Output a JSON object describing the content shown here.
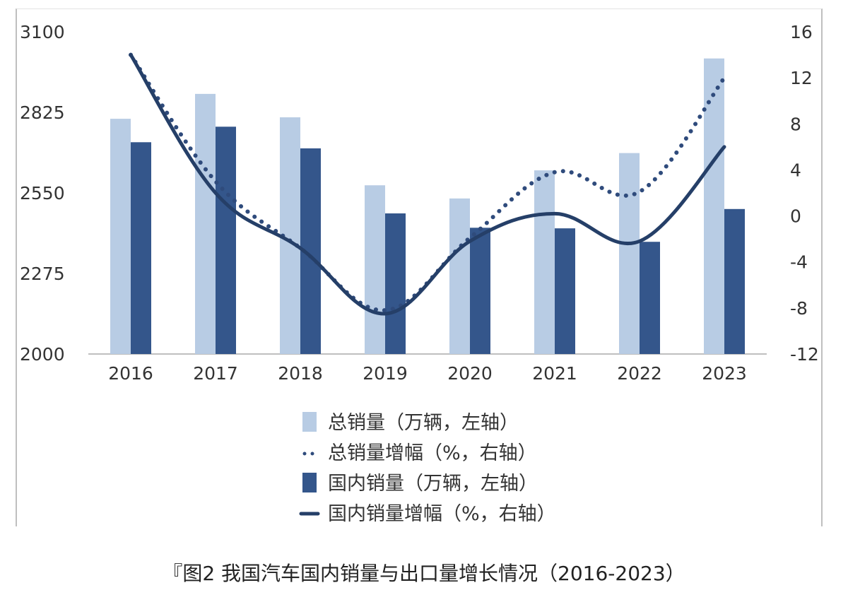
{
  "caption": "『图2 我国汽车国内销量与出口量增长情况（2016-2023）",
  "chart_data": {
    "type": "bar",
    "title": "",
    "categories": [
      "2016",
      "2017",
      "2018",
      "2019",
      "2020",
      "2021",
      "2022",
      "2023"
    ],
    "y_left": {
      "ylim": [
        2000,
        3100
      ],
      "ticks": [
        2000,
        2275,
        2550,
        2825,
        3100
      ]
    },
    "y_right": {
      "ylim": [
        -12,
        16
      ],
      "ticks": [
        -12,
        -8,
        -4,
        0,
        4,
        8,
        12,
        16
      ]
    },
    "series": [
      {
        "name": "总销量（万辆，左轴）",
        "type": "bar",
        "axis": "left",
        "color": "#b8cce4",
        "values": [
          2803,
          2888,
          2808,
          2576,
          2531,
          2627,
          2686,
          3009
        ]
      },
      {
        "name": "总销量增幅（%，右轴）",
        "type": "line",
        "style": "dotted",
        "axis": "right",
        "color": "#2f4b7c",
        "values": [
          14.0,
          3.0,
          -2.8,
          -8.2,
          -1.9,
          3.8,
          2.1,
          12.0
        ]
      },
      {
        "name": "国内销量（万辆，左轴）",
        "type": "bar",
        "axis": "left",
        "color": "#34568b",
        "values": [
          2723,
          2776,
          2702,
          2480,
          2431,
          2429,
          2383,
          2495
        ]
      },
      {
        "name": "国内销量增幅（%，右轴）",
        "type": "line",
        "style": "solid",
        "axis": "right",
        "color": "#253f68",
        "values": [
          14.0,
          2.0,
          -2.8,
          -8.5,
          -2.2,
          0.2,
          -2.2,
          6.0
        ]
      }
    ],
    "legend_position": "bottom",
    "grid": false
  }
}
